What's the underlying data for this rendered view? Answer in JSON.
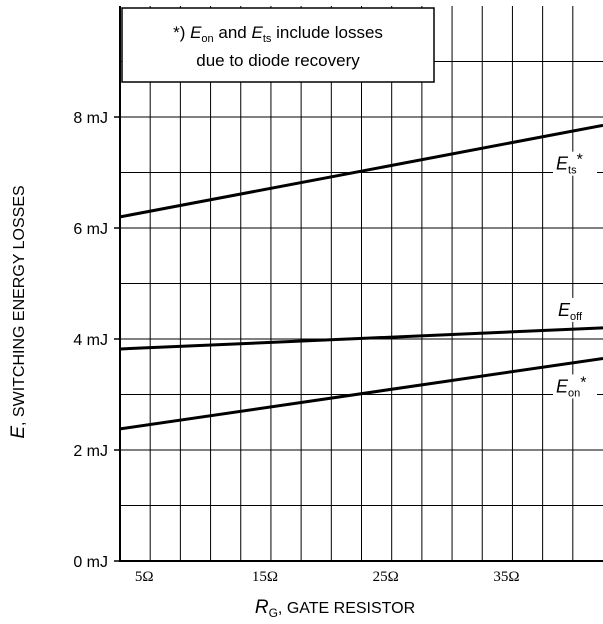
{
  "chart_data": {
    "type": "line",
    "title": "",
    "xlabel": {
      "main": "R",
      "sub": "G",
      "rest": ", GATE RESISTOR"
    },
    "ylabel": {
      "main": "E",
      "rest": ", SWITCHING ENERGY LOSSES"
    },
    "xlim": [
      3,
      43
    ],
    "ylim": [
      0,
      10
    ],
    "x_ticks": [
      {
        "value": 5,
        "label": "5Ω"
      },
      {
        "value": 15,
        "label": "15Ω"
      },
      {
        "value": 25,
        "label": "25Ω"
      },
      {
        "value": 35,
        "label": "35Ω"
      }
    ],
    "y_ticks": [
      {
        "value": 0,
        "label": "0 mJ"
      },
      {
        "value": 2,
        "label": "2 mJ"
      },
      {
        "value": 4,
        "label": "4 mJ"
      },
      {
        "value": 6,
        "label": "6 mJ"
      },
      {
        "value": 8,
        "label": "8 mJ"
      }
    ],
    "x_grid_step": 2.5,
    "y_grid_step": 1,
    "grid": true,
    "note": {
      "line1_prefix": "*) ",
      "line1_e1": "E",
      "line1_e1_sub": "on",
      "line1_mid": " and ",
      "line1_e2": "E",
      "line1_e2_sub": "ts",
      "line1_suffix": " include losses",
      "line2": "due to diode recovery"
    },
    "series": [
      {
        "name": "Ets*",
        "label_main": "E",
        "label_sub": "ts",
        "label_suffix": "*",
        "x": [
          3,
          43
        ],
        "y": [
          6.2,
          7.85
        ]
      },
      {
        "name": "Eoff",
        "label_main": "E",
        "label_sub": "off",
        "label_suffix": "",
        "x": [
          3,
          43
        ],
        "y": [
          3.82,
          4.2
        ]
      },
      {
        "name": "Eon*",
        "label_main": "E",
        "label_sub": "on",
        "label_suffix": "*",
        "x": [
          3,
          43
        ],
        "y": [
          2.38,
          3.65
        ]
      }
    ]
  }
}
